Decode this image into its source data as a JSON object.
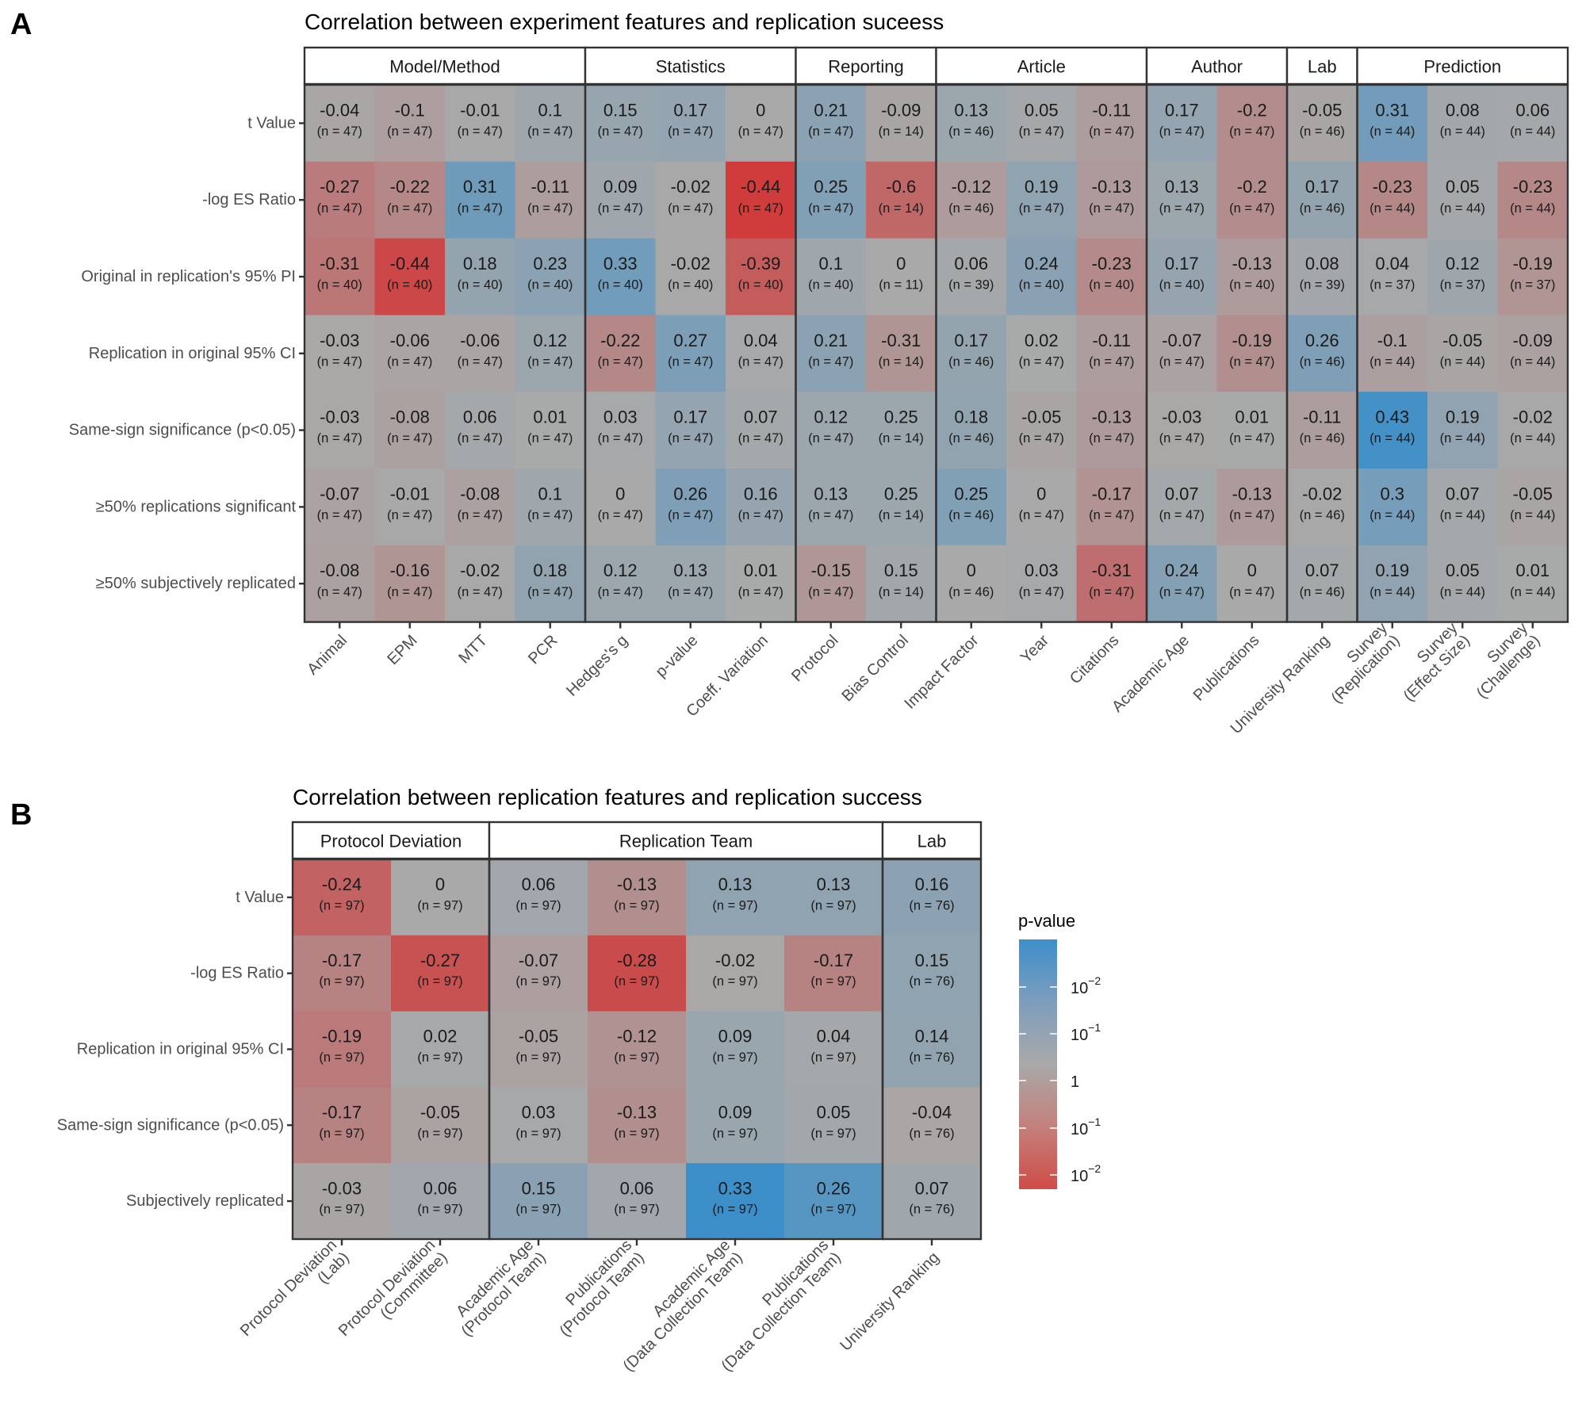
{
  "panels": [
    {
      "letter": "A",
      "title": "Correlation between experiment features and replication suceess"
    },
    {
      "letter": "B",
      "title": "Correlation between replication features and replication success"
    }
  ],
  "chart_data": [
    {
      "type": "heatmap",
      "id": "A",
      "title": "Correlation between experiment features and replication suceess",
      "groups": [
        {
          "label": "Model/Method",
          "span": 4
        },
        {
          "label": "Statistics",
          "span": 3
        },
        {
          "label": "Reporting",
          "span": 2
        },
        {
          "label": "Article",
          "span": 3
        },
        {
          "label": "Author",
          "span": 2
        },
        {
          "label": "Lab",
          "span": 1
        },
        {
          "label": "Prediction",
          "span": 3
        }
      ],
      "columns": [
        [
          "Animal"
        ],
        [
          "EPM"
        ],
        [
          "MTT"
        ],
        [
          "PCR"
        ],
        [
          "Hedges's g"
        ],
        [
          "p-value"
        ],
        [
          "Coeff. Variation"
        ],
        [
          "Protocol"
        ],
        [
          "Bias Control"
        ],
        [
          "Impact Factor"
        ],
        [
          "Year"
        ],
        [
          "Citations"
        ],
        [
          "Academic Age"
        ],
        [
          "Publications"
        ],
        [
          "University Ranking"
        ],
        [
          "Survey",
          "(Replication)"
        ],
        [
          "Survey",
          "(Effect Size)"
        ],
        [
          "Survey",
          "(Challenge)"
        ]
      ],
      "rows": [
        "t Value",
        "-log ES Ratio",
        "Original in replication's 95% PI",
        "Replication in original 95% CI",
        "Same-sign significance (p<0.05)",
        "≥50% replications significant",
        "≥50% subjectively replicated"
      ],
      "values": [
        [
          -0.04,
          -0.1,
          -0.01,
          0.1,
          0.15,
          0.17,
          0,
          0.21,
          -0.09,
          0.13,
          0.05,
          -0.11,
          0.17,
          -0.2,
          -0.05,
          0.31,
          0.08,
          0.06
        ],
        [
          -0.27,
          -0.22,
          0.31,
          -0.11,
          0.09,
          -0.02,
          -0.44,
          0.25,
          -0.6,
          -0.12,
          0.19,
          -0.13,
          0.13,
          -0.2,
          0.17,
          -0.23,
          0.05,
          -0.23
        ],
        [
          -0.31,
          -0.44,
          0.18,
          0.23,
          0.33,
          -0.02,
          -0.39,
          0.1,
          0,
          0.06,
          0.24,
          -0.23,
          0.17,
          -0.13,
          0.08,
          0.04,
          0.12,
          -0.19
        ],
        [
          -0.03,
          -0.06,
          -0.06,
          0.12,
          -0.22,
          0.27,
          0.04,
          0.21,
          -0.31,
          0.17,
          0.02,
          -0.11,
          -0.07,
          -0.19,
          0.26,
          -0.1,
          -0.05,
          -0.09
        ],
        [
          -0.03,
          -0.08,
          0.06,
          0.01,
          0.03,
          0.17,
          0.07,
          0.12,
          0.25,
          0.18,
          -0.05,
          -0.13,
          -0.03,
          0.01,
          -0.11,
          0.43,
          0.19,
          -0.02
        ],
        [
          -0.07,
          -0.01,
          -0.08,
          0.1,
          0,
          0.26,
          0.16,
          0.13,
          0.25,
          0.25,
          0,
          -0.17,
          0.07,
          -0.13,
          -0.02,
          0.3,
          0.07,
          -0.05
        ],
        [
          -0.08,
          -0.16,
          -0.02,
          0.18,
          0.12,
          0.13,
          0.01,
          -0.15,
          0.15,
          0,
          0.03,
          -0.31,
          0.24,
          0,
          0.07,
          0.19,
          0.05,
          0.01
        ]
      ],
      "n": [
        [
          47,
          47,
          47,
          47,
          47,
          47,
          47,
          47,
          14,
          46,
          47,
          47,
          47,
          47,
          46,
          44,
          44,
          44
        ],
        [
          47,
          47,
          47,
          47,
          47,
          47,
          47,
          47,
          14,
          46,
          47,
          47,
          47,
          47,
          46,
          44,
          44,
          44
        ],
        [
          40,
          40,
          40,
          40,
          40,
          40,
          40,
          40,
          11,
          39,
          40,
          40,
          40,
          40,
          39,
          37,
          37,
          37
        ],
        [
          47,
          47,
          47,
          47,
          47,
          47,
          47,
          47,
          14,
          46,
          47,
          47,
          47,
          47,
          46,
          44,
          44,
          44
        ],
        [
          47,
          47,
          47,
          47,
          47,
          47,
          47,
          47,
          14,
          46,
          47,
          47,
          47,
          47,
          46,
          44,
          44,
          44
        ],
        [
          47,
          47,
          47,
          47,
          47,
          47,
          47,
          47,
          14,
          46,
          47,
          47,
          47,
          47,
          46,
          44,
          44,
          44
        ],
        [
          47,
          47,
          47,
          47,
          47,
          47,
          47,
          47,
          14,
          46,
          47,
          47,
          47,
          47,
          46,
          44,
          44,
          44
        ]
      ],
      "cell_label_format": "(n = {n})"
    },
    {
      "type": "heatmap",
      "id": "B",
      "title": "Correlation between replication features and replication success",
      "groups": [
        {
          "label": "Protocol Deviation",
          "span": 2
        },
        {
          "label": "Replication Team",
          "span": 4
        },
        {
          "label": "Lab",
          "span": 1
        }
      ],
      "columns": [
        [
          "Protocol Deviation",
          "(Lab)"
        ],
        [
          "Protocol Deviation",
          "(Committee)"
        ],
        [
          "Academic Age",
          "(Protocol Team)"
        ],
        [
          "Publications",
          "(Protocol Team)"
        ],
        [
          "Academic Age",
          "(Data Collection Team)"
        ],
        [
          "Publications",
          "(Data Collection Team)"
        ],
        [
          "University Ranking"
        ]
      ],
      "rows": [
        "t Value",
        "-log ES Ratio",
        "Replication in original 95% CI",
        "Same-sign significance (p<0.05)",
        "Subjectively replicated"
      ],
      "values": [
        [
          -0.24,
          0,
          0.06,
          -0.13,
          0.13,
          0.13,
          0.16
        ],
        [
          -0.17,
          -0.27,
          -0.07,
          -0.28,
          -0.02,
          -0.17,
          0.15
        ],
        [
          -0.19,
          0.02,
          -0.05,
          -0.12,
          0.09,
          0.04,
          0.14
        ],
        [
          -0.17,
          -0.05,
          0.03,
          -0.13,
          0.09,
          0.05,
          -0.04
        ],
        [
          -0.03,
          0.06,
          0.15,
          0.06,
          0.33,
          0.26,
          0.07
        ]
      ],
      "n": [
        [
          97,
          97,
          97,
          97,
          97,
          97,
          76
        ],
        [
          97,
          97,
          97,
          97,
          97,
          97,
          76
        ],
        [
          97,
          97,
          97,
          97,
          97,
          97,
          76
        ],
        [
          97,
          97,
          97,
          97,
          97,
          97,
          76
        ],
        [
          97,
          97,
          97,
          97,
          97,
          97,
          76
        ]
      ],
      "cell_label_format": "(n = {n})"
    }
  ],
  "legend": {
    "title": "p-value",
    "labels": [
      {
        "base": "10",
        "exp": "−2"
      },
      {
        "base": "10",
        "exp": "−1"
      },
      {
        "base": "1",
        "exp": ""
      },
      {
        "base": "10",
        "exp": "−1"
      },
      {
        "base": "10",
        "exp": "−2"
      }
    ],
    "colors": {
      "positive_strong": "#3d8fca",
      "neutral": "#a9a9a9",
      "negative_strong": "#d03b3b"
    }
  },
  "styles": {
    "strip_fill": "#ffffff",
    "frame_color": "#333333",
    "tick_color": "#333333"
  }
}
